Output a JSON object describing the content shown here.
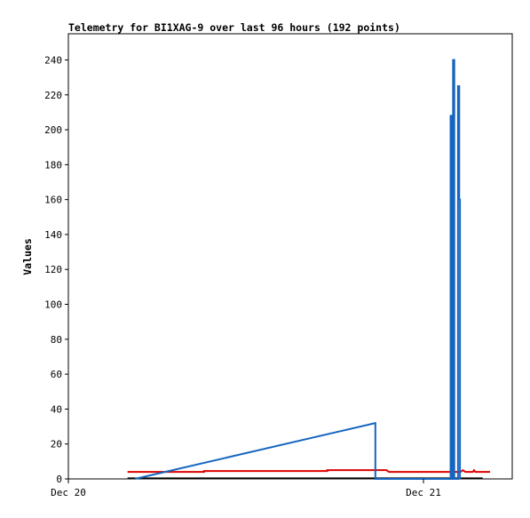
{
  "chart_data": {
    "type": "line",
    "title": "Telemetry for BI1XAG-9 over last 96 hours (192 points)",
    "xlabel": "",
    "ylabel": "Values",
    "xlim": [
      "Dec 20 00:00",
      "Dec 21 06:00"
    ],
    "ylim": [
      0,
      255
    ],
    "yticks": [
      0,
      20,
      40,
      60,
      80,
      100,
      120,
      140,
      160,
      180,
      200,
      220,
      240
    ],
    "xticks": [
      {
        "value": "Dec 20 00:00",
        "label": "Dec 20"
      },
      {
        "value": "Dec 21 00:00",
        "label": "Dec 21"
      }
    ],
    "grid": false,
    "legend": "none",
    "series": [
      {
        "color": "#000000",
        "values": [
          [
            "Dec 20 04:00",
            0.3
          ],
          [
            "Dec 21 04:00",
            0.3
          ]
        ]
      },
      {
        "color": "#dd0000",
        "values": [
          [
            "Dec 20 04:00",
            4
          ],
          [
            "Dec 20 09:10",
            4
          ],
          [
            "Dec 20 09:10",
            4.5
          ],
          [
            "Dec 20 17:30",
            4.5
          ],
          [
            "Dec 20 17:30",
            5
          ],
          [
            "Dec 20 21:30",
            5
          ],
          [
            "Dec 20 21:40",
            4
          ],
          [
            "Dec 21 02:30",
            4
          ],
          [
            "Dec 21 02:40",
            5
          ],
          [
            "Dec 21 02:50",
            4
          ],
          [
            "Dec 21 03:20",
            4
          ],
          [
            "Dec 21 03:25",
            5
          ],
          [
            "Dec 21 03:30",
            4
          ],
          [
            "Dec 21 04:30",
            4
          ]
        ]
      },
      {
        "color": "#1565c0",
        "values": [
          [
            "Dec 20 04:30",
            0
          ],
          [
            "Dec 20 20:45",
            32
          ],
          [
            "Dec 20 20:45",
            0
          ],
          [
            "Dec 21 01:50",
            0
          ],
          [
            "Dec 21 01:50",
            208
          ],
          [
            "Dec 21 01:55",
            208
          ],
          [
            "Dec 21 01:55",
            0
          ],
          [
            "Dec 21 02:00",
            0
          ],
          [
            "Dec 21 02:00",
            240
          ],
          [
            "Dec 21 02:05",
            240
          ],
          [
            "Dec 21 02:05",
            0
          ],
          [
            "Dec 21 02:20",
            0
          ],
          [
            "Dec 21 02:20",
            225
          ],
          [
            "Dec 21 02:25",
            225
          ],
          [
            "Dec 21 02:25",
            160
          ],
          [
            "Dec 21 02:28",
            160
          ],
          [
            "Dec 21 02:28",
            0
          ]
        ]
      }
    ]
  }
}
